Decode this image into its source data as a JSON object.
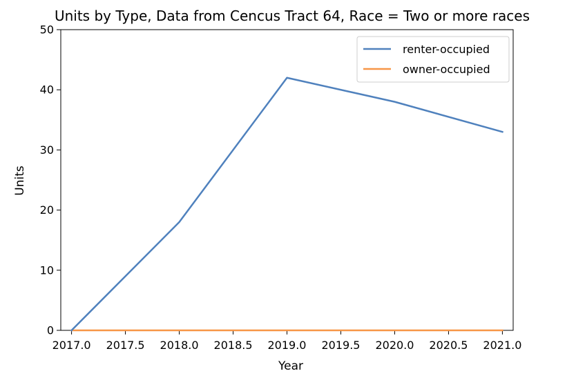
{
  "chart_data": {
    "type": "line",
    "title": "Units by Type, Data from Cencus Tract 64, Race = Two or more races",
    "xlabel": "Year",
    "ylabel": "Units",
    "x": [
      2017.0,
      2018.0,
      2019.0,
      2020.0,
      2021.0
    ],
    "xlim": [
      2016.9,
      2021.1
    ],
    "ylim": [
      0,
      50
    ],
    "x_ticks": [
      "2017.0",
      "2017.5",
      "2018.0",
      "2018.5",
      "2019.0",
      "2019.5",
      "2020.0",
      "2020.5",
      "2021.0"
    ],
    "x_tick_values": [
      2017.0,
      2017.5,
      2018.0,
      2018.5,
      2019.0,
      2019.5,
      2020.0,
      2020.5,
      2021.0
    ],
    "y_ticks": [
      "0",
      "10",
      "20",
      "30",
      "40",
      "50"
    ],
    "y_tick_values": [
      0,
      10,
      20,
      30,
      40,
      50
    ],
    "grid": false,
    "legend_position": "top-right",
    "series": [
      {
        "name": "renter-occupied",
        "color": "#4f81bd",
        "values": [
          0,
          18,
          42,
          38,
          33
        ]
      },
      {
        "name": "owner-occupied",
        "color": "#f79646",
        "values": [
          0,
          0,
          0,
          0,
          0
        ]
      }
    ]
  }
}
